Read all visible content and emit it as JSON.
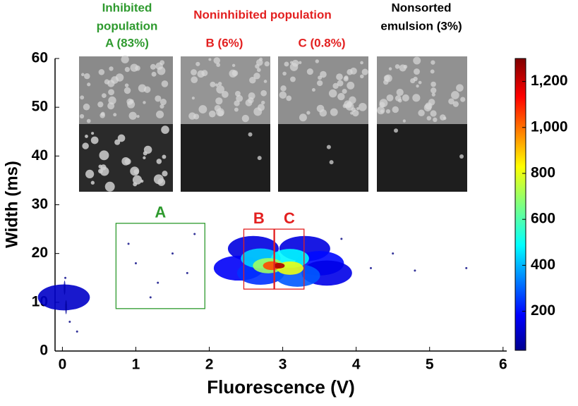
{
  "chart_data": {
    "type": "scatter",
    "x_label": "Fluorescence (V)",
    "y_label": "Width (ms)",
    "xlim": [
      -0.1,
      6.05
    ],
    "ylim": [
      0,
      60
    ],
    "xticks": [
      0,
      1,
      2,
      3,
      4,
      5,
      6
    ],
    "yticks": [
      0,
      10,
      20,
      30,
      40,
      50,
      60
    ],
    "x": [
      0.02,
      0.03,
      0.05,
      0.04,
      0.1,
      0.2,
      1.0,
      1.3,
      1.5,
      1.2,
      1.7,
      0.9,
      1.8,
      4.2,
      4.8,
      5.5,
      4.5,
      3.8,
      2.6,
      3.3,
      3.5,
      2.4,
      3.6,
      2.7,
      3.2,
      2.7,
      3.1,
      2.8,
      3.1,
      2.85,
      2.95
    ],
    "y": [
      11,
      13,
      9,
      15,
      6,
      4,
      18,
      14,
      20,
      11,
      16,
      22,
      24,
      17,
      16.5,
      17,
      20,
      23,
      21,
      21,
      18,
      17,
      16,
      16,
      15.5,
      19,
      19,
      17.5,
      17,
      17.5,
      17.5
    ],
    "density": [
      120,
      90,
      60,
      40,
      30,
      30,
      30,
      30,
      30,
      30,
      30,
      30,
      30,
      40,
      30,
      30,
      30,
      30,
      150,
      150,
      200,
      180,
      160,
      250,
      300,
      450,
      500,
      700,
      800,
      1050,
      1250
    ],
    "colorbar": {
      "lim": [
        30,
        1300
      ],
      "ticks": [
        200,
        400,
        600,
        800,
        {
          "value": 1000,
          "label": "1,000"
        },
        {
          "value": 1200,
          "label": "1,200"
        }
      ]
    },
    "gates": [
      {
        "label": "A",
        "color": "#2e9a2e",
        "x": [
          0.73,
          1.94
        ],
        "y": [
          8.7,
          26.2
        ]
      },
      {
        "label": "B",
        "color": "#e32020",
        "x": [
          2.47,
          2.88
        ],
        "y": [
          12.7,
          25.0
        ]
      },
      {
        "label": "C",
        "color": "#e32020",
        "x": [
          2.89,
          3.29
        ],
        "y": [
          12.7,
          25.0
        ]
      }
    ],
    "annotations": [
      {
        "text": "Inhibited",
        "color": "#2e9a2e"
      },
      {
        "text": "population",
        "color": "#2e9a2e"
      },
      {
        "text": "A (83%)",
        "color": "#2e9a2e"
      },
      {
        "text": "Noninhibited population",
        "color": "#e32020"
      },
      {
        "text": "B (6%)",
        "color": "#e32020"
      },
      {
        "text": "C (0.8%)",
        "color": "#e32020"
      },
      {
        "text": "Nonsorted",
        "color": "#000000"
      },
      {
        "text": "emulsion (3%)",
        "color": "#000000"
      }
    ]
  }
}
